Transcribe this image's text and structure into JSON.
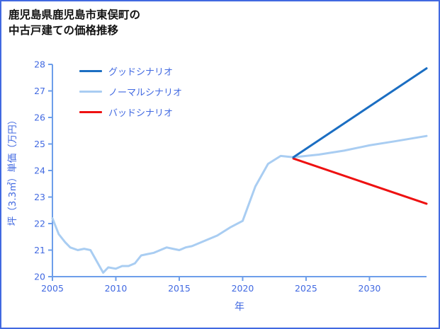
{
  "title": {
    "line1": "鹿児島県鹿児島市東俣町の",
    "line2": "中古戸建ての価格推移"
  },
  "colors": {
    "frame": "#4169e1",
    "blue_text": "#4169e1"
  },
  "chart_data": {
    "type": "line",
    "title": "鹿児島県鹿児島市東俣町の中古戸建ての価格推移",
    "xlabel": "年",
    "ylabel": "坪（3.3㎡）単価（万円）",
    "xlim": [
      2005,
      2034.5
    ],
    "ylim": [
      20,
      28
    ],
    "xticks": [
      2005,
      2010,
      2015,
      2020,
      2025,
      2030
    ],
    "yticks": [
      20,
      21,
      22,
      23,
      24,
      25,
      26,
      27,
      28
    ],
    "grid": false,
    "legend_position": "top-left",
    "axis_color": "#6d9eea",
    "tick_label_color": "#4169e1",
    "draw_order": [
      "normal",
      "bad",
      "good"
    ],
    "series": [
      {
        "id": "good",
        "name": "グッドシナリオ",
        "color": "#1b6ec2",
        "width": 3,
        "x": [
          2024,
          2034.5
        ],
        "y": [
          24.5,
          27.85
        ]
      },
      {
        "id": "normal",
        "name": "ノーマルシナリオ",
        "color": "#a9cdf2",
        "width": 3,
        "x": [
          2005,
          2005.5,
          2006,
          2006.4,
          2007,
          2007.5,
          2008,
          2009,
          2009.4,
          2010,
          2010.5,
          2011,
          2011.5,
          2012,
          2012.5,
          2013,
          2014,
          2014.5,
          2015,
          2015.5,
          2016,
          2017,
          2018,
          2019,
          2020,
          2021,
          2022,
          2023,
          2024,
          2026,
          2028,
          2030,
          2032,
          2034.5
        ],
        "y": [
          22.2,
          21.6,
          21.3,
          21.1,
          21.0,
          21.05,
          21.0,
          20.15,
          20.35,
          20.3,
          20.4,
          20.4,
          20.5,
          20.8,
          20.85,
          20.9,
          21.1,
          21.05,
          21.0,
          21.1,
          21.15,
          21.35,
          21.55,
          21.85,
          22.1,
          23.4,
          24.25,
          24.55,
          24.5,
          24.6,
          24.75,
          24.95,
          25.1,
          25.3
        ]
      },
      {
        "id": "bad",
        "name": "バッドシナリオ",
        "color": "#ee1111",
        "width": 3,
        "x": [
          2024,
          2034.5
        ],
        "y": [
          24.45,
          22.75
        ]
      }
    ]
  }
}
